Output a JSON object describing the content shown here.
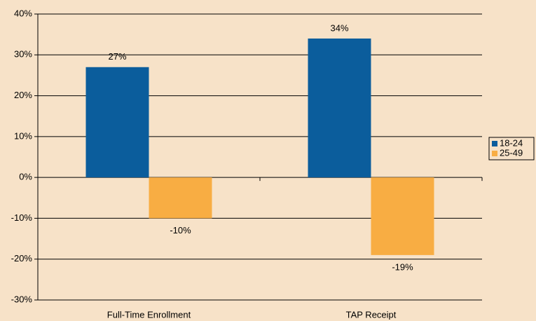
{
  "chart_data": {
    "type": "bar",
    "categories": [
      "Full-Time Enrollment",
      "TAP Receipt"
    ],
    "series": [
      {
        "name": "18-24",
        "color": "#0b5d9c",
        "values": [
          27,
          34
        ],
        "value_labels": [
          "27%",
          "34%"
        ]
      },
      {
        "name": "25-49",
        "color": "#f8ad43",
        "values": [
          -10,
          -19
        ],
        "value_labels": [
          "-10%",
          "-19%"
        ]
      }
    ],
    "ylim": [
      -30,
      40
    ],
    "yticks": [
      {
        "value": -30,
        "label": "-30%"
      },
      {
        "value": -20,
        "label": "-20%"
      },
      {
        "value": -10,
        "label": "-10%"
      },
      {
        "value": 0,
        "label": "0%"
      },
      {
        "value": 10,
        "label": "10%"
      },
      {
        "value": 20,
        "label": "20%"
      },
      {
        "value": 30,
        "label": "30%"
      },
      {
        "value": 40,
        "label": "40%"
      }
    ],
    "grid": true,
    "legend": "right"
  }
}
